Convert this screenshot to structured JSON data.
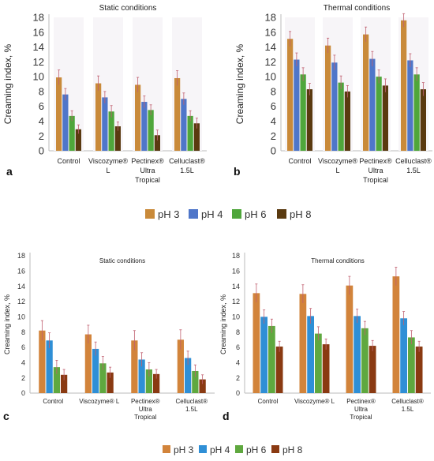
{
  "colors": {
    "ph3": "#c98a3a",
    "ph4": "#4f76c9",
    "ph6": "#4fa63b",
    "ph8": "#5a3a10",
    "ph3_lower": "#d2843b",
    "ph4_lower": "#2f8fd6",
    "ph6_lower": "#5fa83f",
    "ph8_lower": "#8a3a12",
    "error_bar": "#c06070"
  },
  "legend_top": [
    "pH 3",
    "pH 4",
    "pH 6",
    "pH 8"
  ],
  "legend_bottom": [
    "pH 3",
    "pH 4",
    "pH 6",
    "pH 8"
  ],
  "chart_data": [
    {
      "panel": "a",
      "type": "bar",
      "title": "Static conditions",
      "ylabel": "Creaming index, %",
      "ylim": [
        0,
        18
      ],
      "yticks": [
        0,
        2,
        4,
        6,
        8,
        10,
        12,
        14,
        16,
        18
      ],
      "categories": [
        [
          "Control"
        ],
        [
          "Viscozyme®",
          "L"
        ],
        [
          "Pectinex®",
          "Ultra",
          "Tropical"
        ],
        [
          "Celluclast®",
          "1.5L"
        ]
      ],
      "series": [
        {
          "name": "pH 3",
          "values": [
            9.9,
            9.1,
            8.9,
            9.8
          ],
          "errors": [
            1.0,
            1.0,
            1.0,
            1.0
          ]
        },
        {
          "name": "pH 4",
          "values": [
            7.6,
            7.2,
            6.6,
            7.0
          ],
          "errors": [
            0.8,
            0.8,
            0.8,
            0.8
          ]
        },
        {
          "name": "pH 6",
          "values": [
            4.7,
            5.3,
            5.5,
            4.7
          ],
          "errors": [
            0.7,
            0.8,
            0.7,
            0.7
          ]
        },
        {
          "name": "pH 8",
          "values": [
            2.9,
            3.3,
            2.1,
            3.7
          ],
          "errors": [
            0.6,
            0.6,
            0.7,
            0.7
          ]
        }
      ]
    },
    {
      "panel": "b",
      "type": "bar",
      "title": "Thermal conditions",
      "ylabel": "Creaming index, %",
      "ylim": [
        0,
        18
      ],
      "yticks": [
        0,
        2,
        4,
        6,
        8,
        10,
        12,
        14,
        16,
        18
      ],
      "categories": [
        [
          "Control"
        ],
        [
          "Viscozyme®",
          "L"
        ],
        [
          "Pectinex®",
          "Ultra",
          "Tropical"
        ],
        [
          "Celluclast®",
          "1.5L"
        ]
      ],
      "series": [
        {
          "name": "pH 3",
          "values": [
            15.1,
            14.2,
            15.7,
            17.6
          ],
          "errors": [
            1.0,
            1.0,
            1.0,
            0.9
          ]
        },
        {
          "name": "pH 4",
          "values": [
            12.3,
            11.9,
            12.4,
            12.2
          ],
          "errors": [
            0.9,
            1.0,
            1.0,
            0.9
          ]
        },
        {
          "name": "pH 6",
          "values": [
            10.3,
            9.2,
            10.0,
            10.3
          ],
          "errors": [
            0.9,
            0.9,
            0.9,
            0.9
          ]
        },
        {
          "name": "pH 8",
          "values": [
            8.3,
            8.0,
            8.8,
            8.3
          ],
          "errors": [
            0.8,
            0.8,
            0.9,
            0.9
          ]
        }
      ]
    },
    {
      "panel": "c",
      "type": "bar",
      "title": "Static conditions",
      "ylabel": "Creaming index, %",
      "ylim": [
        0,
        18
      ],
      "yticks": [
        0,
        2,
        4,
        6,
        8,
        10,
        12,
        14,
        16,
        18
      ],
      "categories": [
        [
          "Control"
        ],
        [
          "Viscozyme® L"
        ],
        [
          "Pectinex®",
          "Ultra",
          "Tropical"
        ],
        [
          "Celluclast®",
          "1.5L"
        ]
      ],
      "series": [
        {
          "name": "pH 3",
          "values": [
            8.2,
            7.7,
            6.9,
            7.0
          ],
          "errors": [
            1.3,
            1.2,
            1.3,
            1.3
          ]
        },
        {
          "name": "pH 4",
          "values": [
            6.9,
            5.8,
            4.4,
            4.6
          ],
          "errors": [
            1.0,
            0.9,
            0.9,
            0.9
          ]
        },
        {
          "name": "pH 6",
          "values": [
            3.4,
            3.9,
            3.1,
            2.9
          ],
          "errors": [
            0.9,
            0.9,
            0.9,
            0.8
          ]
        },
        {
          "name": "pH 8",
          "values": [
            2.4,
            2.7,
            2.5,
            1.8
          ],
          "errors": [
            0.7,
            0.7,
            0.6,
            0.6
          ]
        }
      ]
    },
    {
      "panel": "d",
      "type": "bar",
      "title": "Thermal conditions",
      "ylabel": "Creaming index, %",
      "ylim": [
        0,
        18
      ],
      "yticks": [
        0,
        2,
        4,
        6,
        8,
        10,
        12,
        14,
        16,
        18
      ],
      "categories": [
        [
          "Control"
        ],
        [
          "Viscozyme® L"
        ],
        [
          "Pectinex®",
          "Ultra",
          "Tropical"
        ],
        [
          "Celluclast®",
          "1.5L"
        ]
      ],
      "series": [
        {
          "name": "pH 3",
          "values": [
            13.1,
            13.0,
            14.1,
            15.3
          ],
          "errors": [
            1.2,
            1.2,
            1.2,
            1.2
          ]
        },
        {
          "name": "pH 4",
          "values": [
            10.0,
            10.1,
            10.1,
            9.8
          ],
          "errors": [
            0.9,
            1.0,
            0.9,
            0.9
          ]
        },
        {
          "name": "pH 6",
          "values": [
            8.8,
            7.8,
            8.5,
            7.3
          ],
          "errors": [
            0.9,
            0.9,
            0.9,
            0.9
          ]
        },
        {
          "name": "pH 8",
          "values": [
            6.1,
            6.4,
            6.2,
            6.1
          ],
          "errors": [
            0.7,
            0.7,
            0.7,
            0.7
          ]
        }
      ]
    }
  ]
}
